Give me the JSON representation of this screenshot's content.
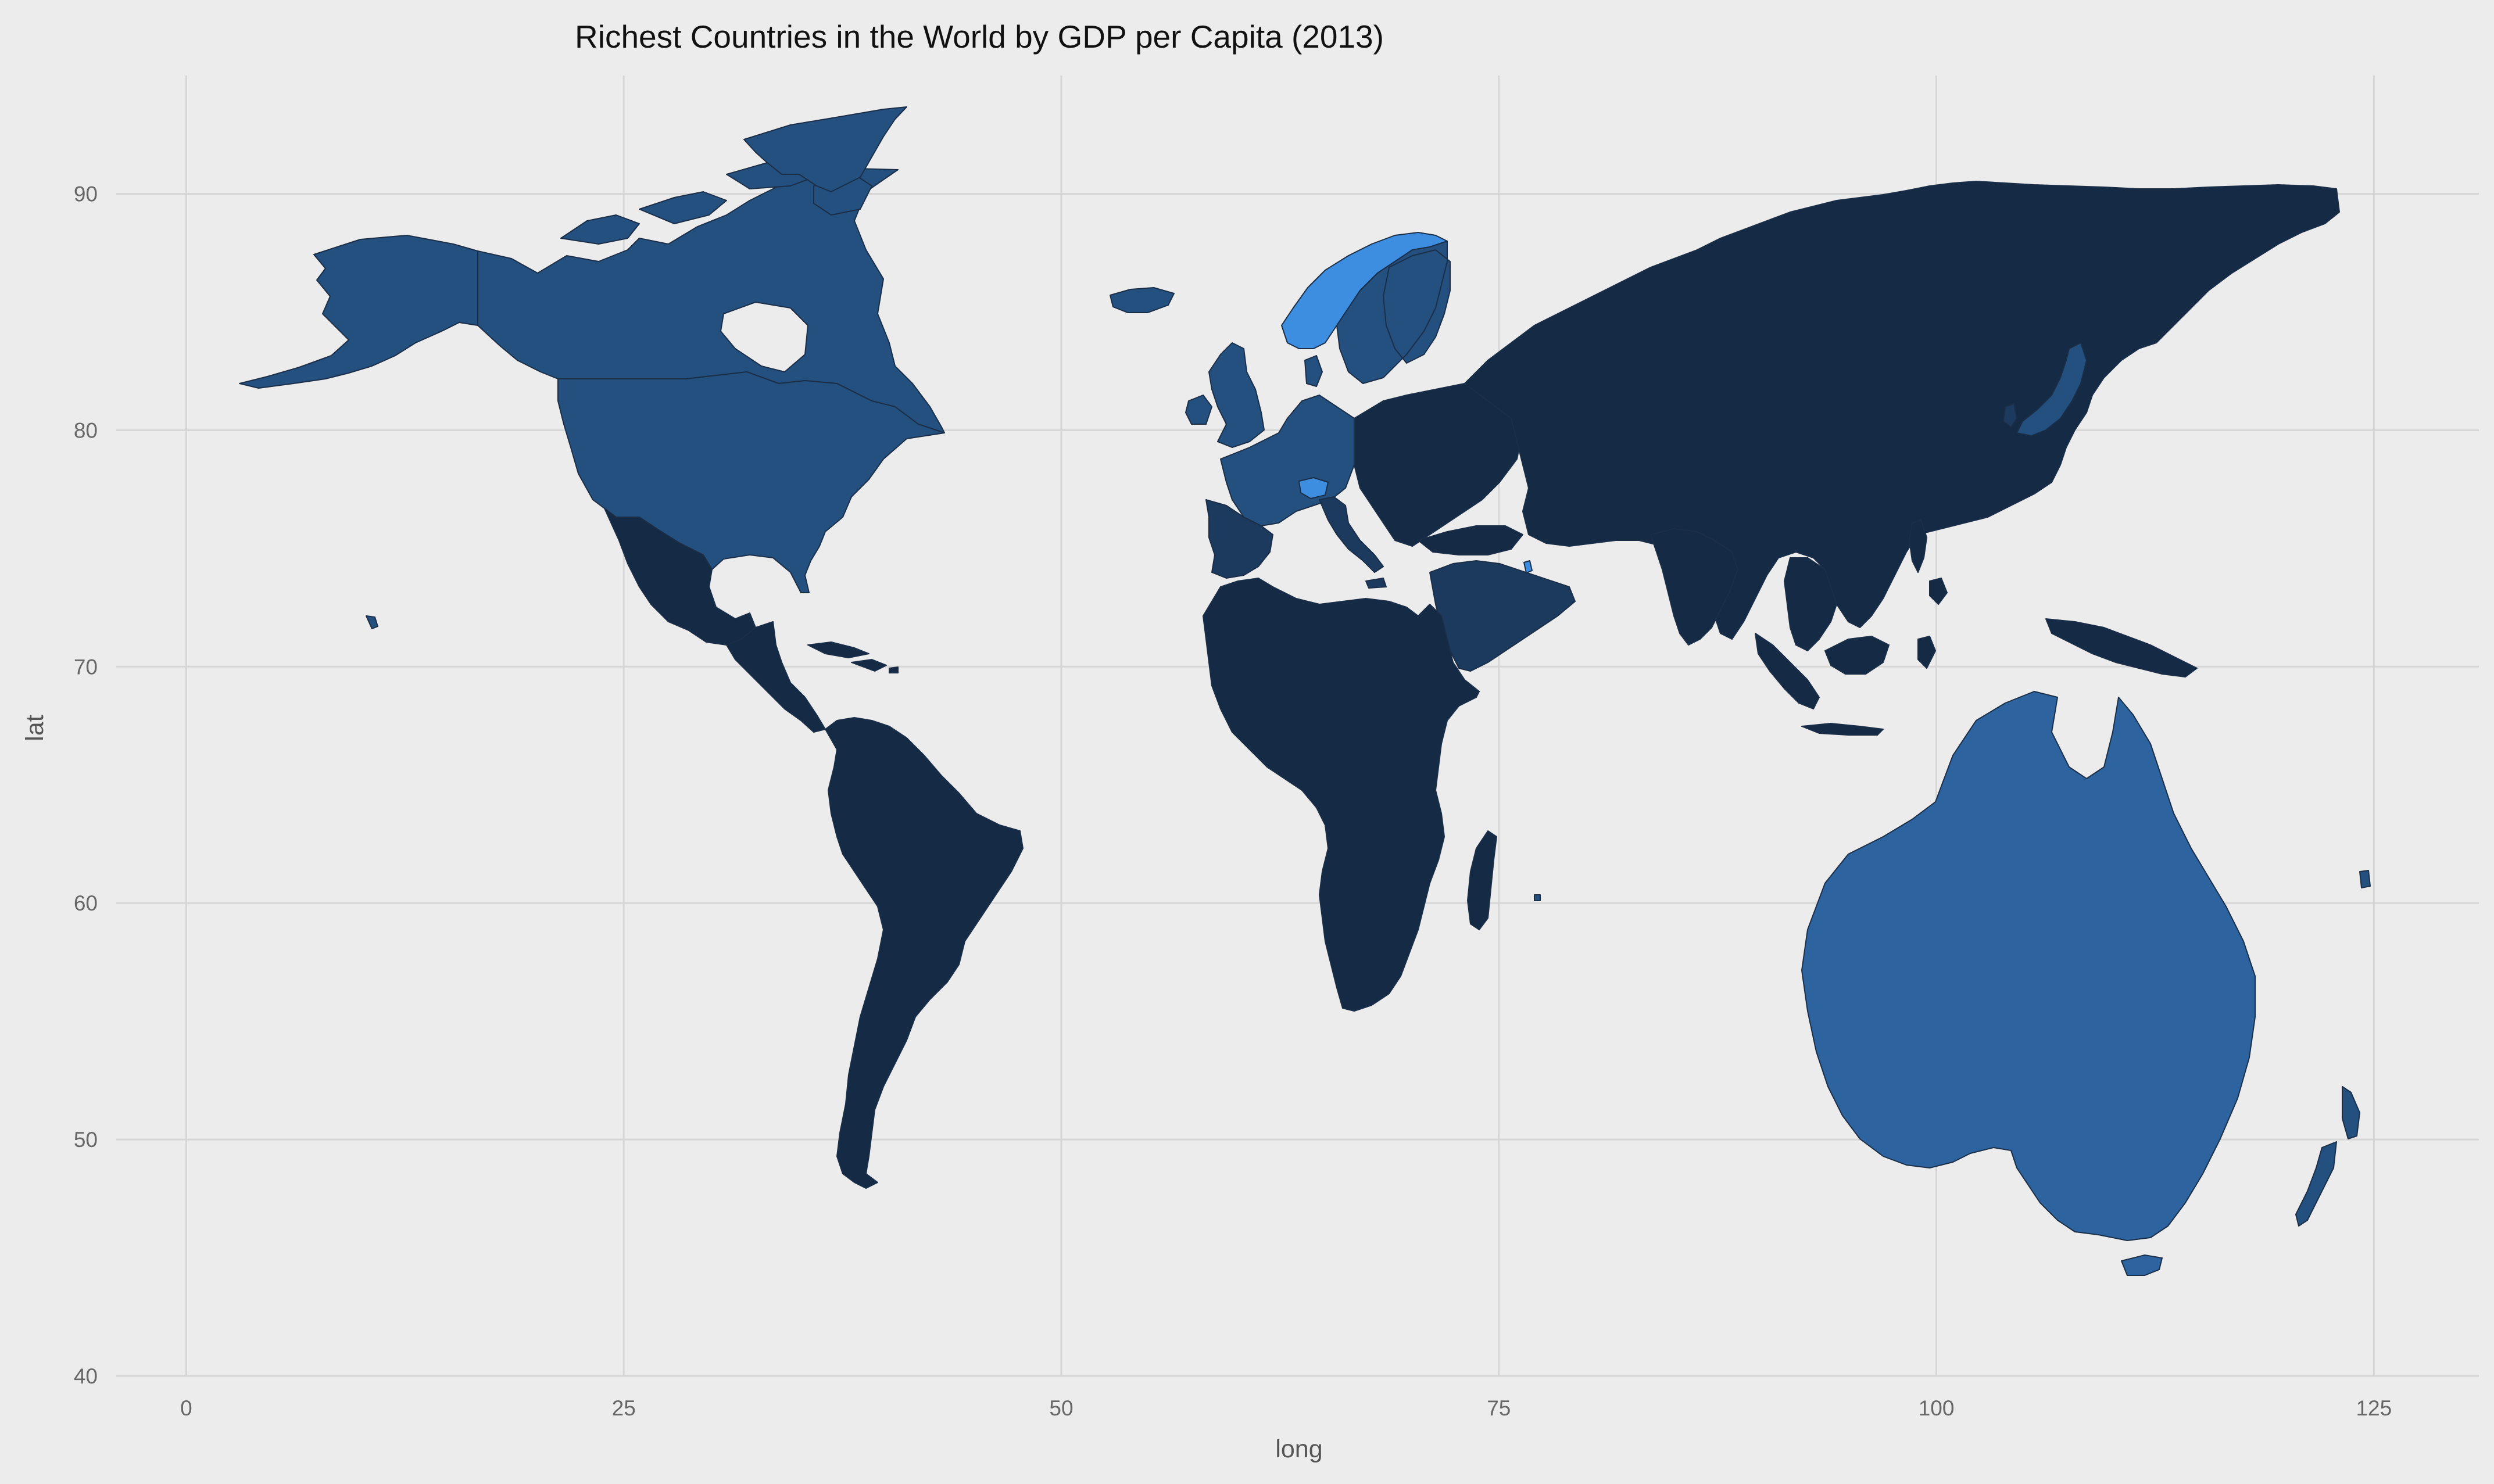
{
  "chart_data": {
    "type": "choropleth map",
    "title": "Richest Countries in the World by GDP per Capita (2013)",
    "xlabel": "long",
    "ylabel": "lat",
    "x_ticks": [
      0,
      25,
      50,
      75,
      100,
      125
    ],
    "y_ticks": [
      40,
      50,
      60,
      70,
      80,
      90
    ],
    "xlim": [
      -4,
      131
    ],
    "ylim": [
      40,
      95
    ],
    "grid": true,
    "legend": "none",
    "palette": {
      "lowest": "#142a45",
      "low": "#1c3a5e",
      "mid": "#24507f",
      "high": "#2d64a0",
      "highest": "#3d8ee0"
    },
    "regions": [
      {
        "name": "Alaska",
        "tier": "mid"
      },
      {
        "name": "Canada",
        "tier": "mid"
      },
      {
        "name": "United States",
        "tier": "mid"
      },
      {
        "name": "Greenland",
        "tier": "mid"
      },
      {
        "name": "Iceland",
        "tier": "mid"
      },
      {
        "name": "Mexico",
        "tier": "lowest"
      },
      {
        "name": "Central America",
        "tier": "lowest"
      },
      {
        "name": "Caribbean",
        "tier": "lowest"
      },
      {
        "name": "South America",
        "tier": "lowest"
      },
      {
        "name": "Western Europe",
        "tier": "mid"
      },
      {
        "name": "Iberia",
        "tier": "low"
      },
      {
        "name": "Italy",
        "tier": "low"
      },
      {
        "name": "United Kingdom",
        "tier": "mid"
      },
      {
        "name": "Ireland",
        "tier": "mid"
      },
      {
        "name": "Switzerland",
        "tier": "highest"
      },
      {
        "name": "Norway",
        "tier": "highest"
      },
      {
        "name": "Sweden",
        "tier": "mid"
      },
      {
        "name": "Finland",
        "tier": "mid"
      },
      {
        "name": "Eastern Europe",
        "tier": "lowest"
      },
      {
        "name": "Africa",
        "tier": "lowest"
      },
      {
        "name": "Madagascar",
        "tier": "lowest"
      },
      {
        "name": "Arabian Peninsula",
        "tier": "low"
      },
      {
        "name": "Qatar",
        "tier": "highest"
      },
      {
        "name": "Russia and Asia",
        "tier": "lowest"
      },
      {
        "name": "Japan",
        "tier": "mid"
      },
      {
        "name": "South Korea",
        "tier": "low"
      },
      {
        "name": "Southeast Asia",
        "tier": "lowest"
      },
      {
        "name": "Indonesia",
        "tier": "lowest"
      },
      {
        "name": "Philippines",
        "tier": "lowest"
      },
      {
        "name": "Papua New Guinea",
        "tier": "lowest"
      },
      {
        "name": "Australia",
        "tier": "high"
      },
      {
        "name": "Tasmania",
        "tier": "high"
      },
      {
        "name": "New Zealand",
        "tier": "mid"
      }
    ]
  }
}
